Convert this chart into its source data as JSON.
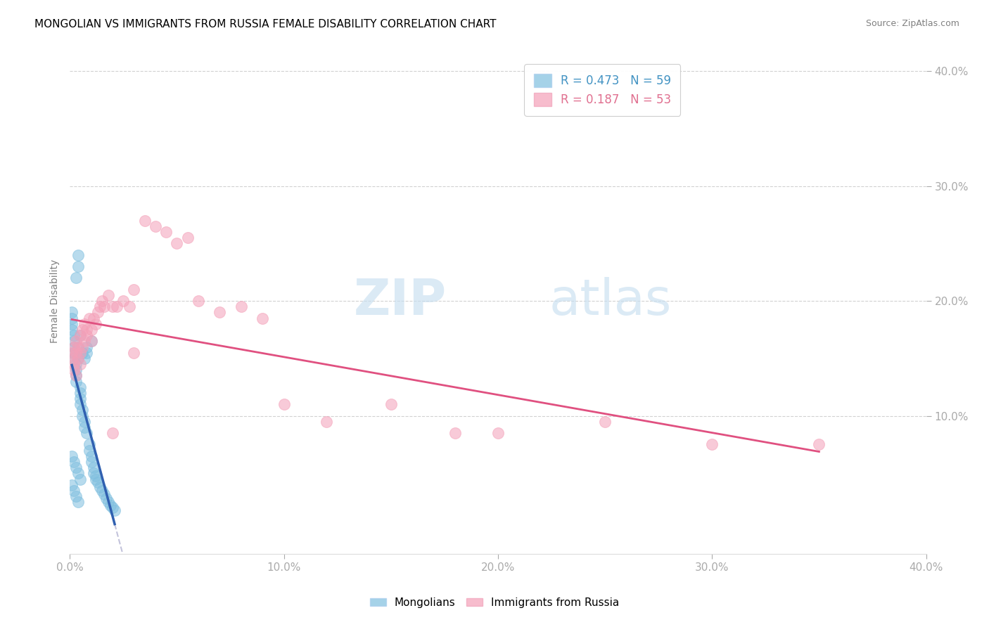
{
  "title": "MONGOLIAN VS IMMIGRANTS FROM RUSSIA FEMALE DISABILITY CORRELATION CHART",
  "source": "Source: ZipAtlas.com",
  "ylabel": "Female Disability",
  "xlim": [
    0.0,
    0.4
  ],
  "ylim": [
    -0.02,
    0.42
  ],
  "xticks": [
    0.0,
    0.1,
    0.2,
    0.3,
    0.4
  ],
  "yticks": [
    0.1,
    0.2,
    0.3,
    0.4
  ],
  "xtick_labels": [
    "0.0%",
    "10.0%",
    "20.0%",
    "30.0%",
    "40.0%"
  ],
  "ytick_labels": [
    "10.0%",
    "20.0%",
    "30.0%",
    "40.0%"
  ],
  "blue_color": "#7fbfdf",
  "pink_color": "#f4a0b8",
  "blue_line_color": "#3060b0",
  "pink_line_color": "#e05080",
  "dashed_line_color": "#aaaacc",
  "legend_blue_r": "R = 0.473",
  "legend_blue_n": "N = 59",
  "legend_pink_r": "R = 0.187",
  "legend_pink_n": "N = 53",
  "watermark_zip": "ZIP",
  "watermark_atlas": "atlas",
  "blue_scatter_x": [
    0.001,
    0.001,
    0.001,
    0.001,
    0.002,
    0.002,
    0.002,
    0.002,
    0.002,
    0.003,
    0.003,
    0.003,
    0.003,
    0.003,
    0.004,
    0.004,
    0.004,
    0.004,
    0.005,
    0.005,
    0.005,
    0.005,
    0.005,
    0.006,
    0.006,
    0.006,
    0.007,
    0.007,
    0.007,
    0.008,
    0.008,
    0.008,
    0.009,
    0.009,
    0.01,
    0.01,
    0.01,
    0.011,
    0.011,
    0.012,
    0.012,
    0.013,
    0.014,
    0.015,
    0.016,
    0.017,
    0.018,
    0.019,
    0.02,
    0.021,
    0.001,
    0.002,
    0.003,
    0.004,
    0.002,
    0.003,
    0.004,
    0.005,
    0.001
  ],
  "blue_scatter_y": [
    0.19,
    0.185,
    0.18,
    0.175,
    0.17,
    0.165,
    0.16,
    0.155,
    0.15,
    0.145,
    0.14,
    0.135,
    0.13,
    0.22,
    0.23,
    0.24,
    0.15,
    0.16,
    0.125,
    0.12,
    0.115,
    0.11,
    0.17,
    0.105,
    0.1,
    0.155,
    0.095,
    0.09,
    0.15,
    0.085,
    0.155,
    0.16,
    0.075,
    0.07,
    0.065,
    0.06,
    0.165,
    0.055,
    0.05,
    0.048,
    0.045,
    0.042,
    0.038,
    0.035,
    0.032,
    0.028,
    0.025,
    0.022,
    0.02,
    0.018,
    0.04,
    0.035,
    0.03,
    0.025,
    0.06,
    0.055,
    0.05,
    0.045,
    0.065
  ],
  "pink_scatter_x": [
    0.001,
    0.001,
    0.002,
    0.002,
    0.002,
    0.003,
    0.003,
    0.003,
    0.004,
    0.004,
    0.005,
    0.005,
    0.005,
    0.006,
    0.006,
    0.007,
    0.007,
    0.008,
    0.008,
    0.009,
    0.01,
    0.01,
    0.011,
    0.012,
    0.013,
    0.014,
    0.015,
    0.016,
    0.018,
    0.02,
    0.022,
    0.025,
    0.028,
    0.03,
    0.035,
    0.04,
    0.045,
    0.05,
    0.055,
    0.06,
    0.07,
    0.08,
    0.09,
    0.1,
    0.12,
    0.15,
    0.18,
    0.2,
    0.25,
    0.3,
    0.02,
    0.03,
    0.35
  ],
  "pink_scatter_y": [
    0.155,
    0.15,
    0.145,
    0.14,
    0.16,
    0.135,
    0.155,
    0.165,
    0.15,
    0.16,
    0.145,
    0.155,
    0.17,
    0.16,
    0.175,
    0.165,
    0.18,
    0.175,
    0.17,
    0.185,
    0.165,
    0.175,
    0.185,
    0.18,
    0.19,
    0.195,
    0.2,
    0.195,
    0.205,
    0.195,
    0.195,
    0.2,
    0.195,
    0.21,
    0.27,
    0.265,
    0.26,
    0.25,
    0.255,
    0.2,
    0.19,
    0.195,
    0.185,
    0.11,
    0.095,
    0.11,
    0.085,
    0.085,
    0.095,
    0.075,
    0.085,
    0.155,
    0.075
  ]
}
